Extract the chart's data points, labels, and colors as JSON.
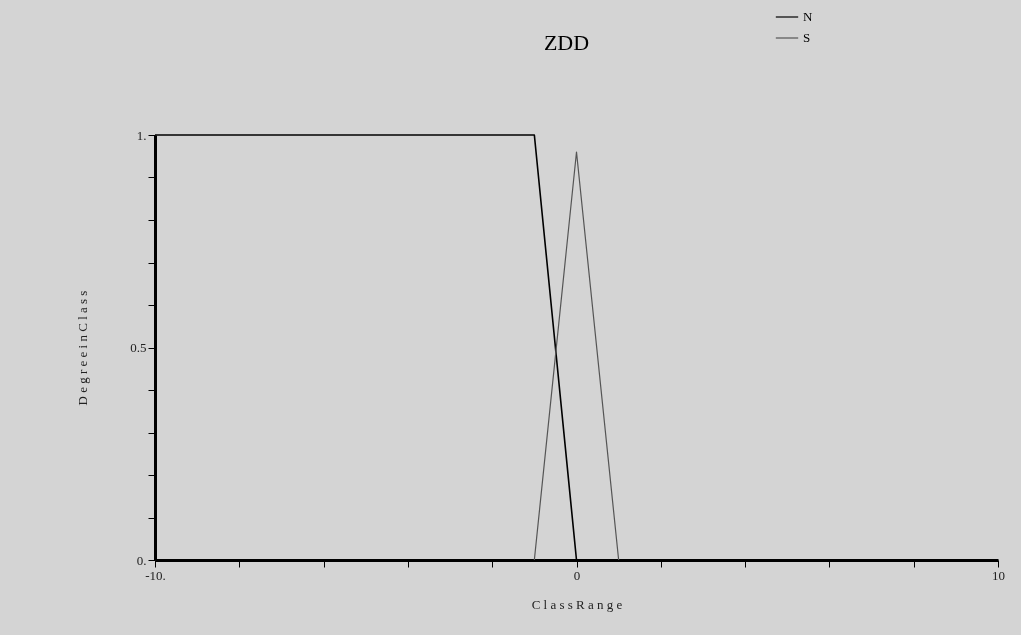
{
  "chart_data": {
    "type": "line",
    "title": "ZDD",
    "xlabel": "C l a s s   R a n g e",
    "ylabel": "D e g r e e   i n   C l a s s",
    "series": [
      {
        "name": "N",
        "color": "#000000",
        "x": [
          -10,
          -1,
          0,
          10
        ],
        "values": [
          1,
          1,
          0,
          0
        ]
      },
      {
        "name": "S",
        "color": "#555555",
        "x": [
          -1,
          0,
          1
        ],
        "values": [
          0,
          0.96,
          0
        ]
      }
    ],
    "xlim": [
      -10,
      10
    ],
    "ylim": [
      0,
      1
    ],
    "xticks": [
      {
        "value": -10,
        "label": "-10."
      },
      {
        "value": -8,
        "label": null
      },
      {
        "value": -6,
        "label": null
      },
      {
        "value": -4,
        "label": null
      },
      {
        "value": -2,
        "label": null
      },
      {
        "value": 0,
        "label": "0"
      },
      {
        "value": 2,
        "label": null
      },
      {
        "value": 4,
        "label": null
      },
      {
        "value": 6,
        "label": null
      },
      {
        "value": 8,
        "label": null
      },
      {
        "value": 10,
        "label": "10"
      }
    ],
    "yticks": [
      {
        "value": 0,
        "label": "0."
      },
      {
        "value": 0.1,
        "label": null
      },
      {
        "value": 0.2,
        "label": null
      },
      {
        "value": 0.3,
        "label": null
      },
      {
        "value": 0.4,
        "label": null
      },
      {
        "value": 0.5,
        "label": "0.5"
      },
      {
        "value": 0.6,
        "label": null
      },
      {
        "value": 0.7,
        "label": null
      },
      {
        "value": 0.8,
        "label": null
      },
      {
        "value": 0.9,
        "label": null
      },
      {
        "value": 1,
        "label": "1."
      }
    ],
    "grid": false,
    "legend": "top right",
    "line_style": "solid",
    "marker": "none"
  }
}
